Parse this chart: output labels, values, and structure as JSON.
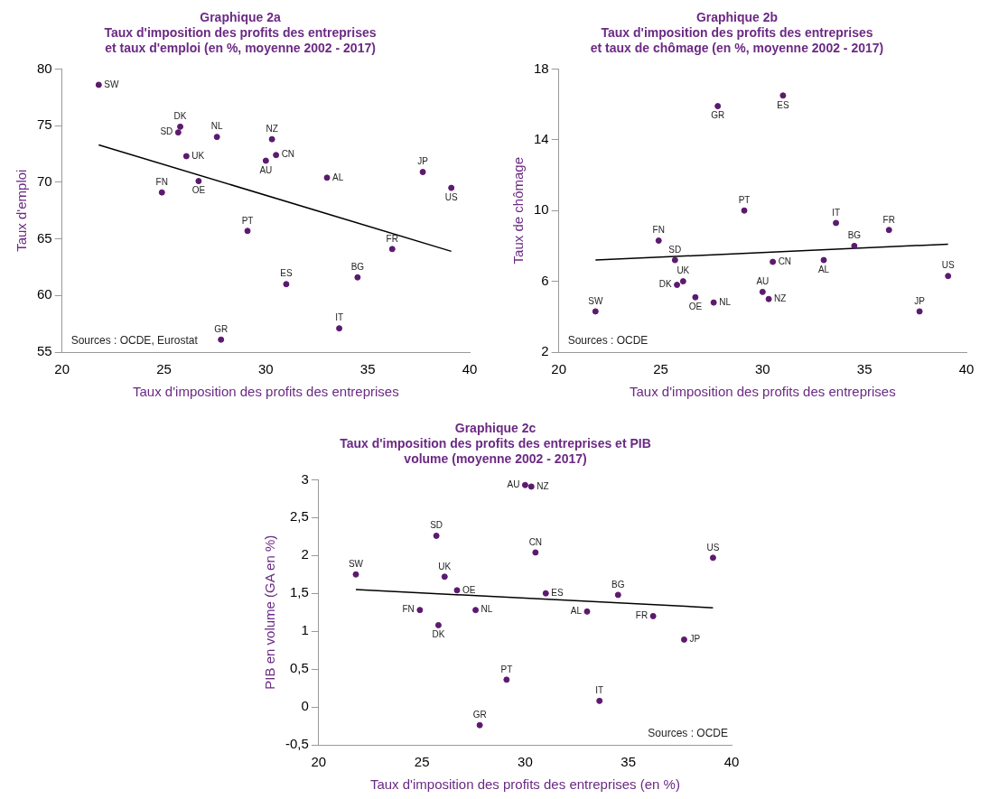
{
  "chart_data": [
    {
      "type": "scatter",
      "title": "Graphique 2a",
      "subtitle": "Taux d'imposition des profits des entreprises\net taux d'emploi (en %, moyenne 2002 - 2017)",
      "xlabel": "Taux d'imposition des profits des entreprises",
      "ylabel": "Taux d'emploi",
      "xlim": [
        20,
        40
      ],
      "xticks": [
        20,
        25,
        30,
        35,
        40
      ],
      "ylim": [
        55,
        80
      ],
      "yticks": [
        55,
        60,
        65,
        70,
        75,
        80
      ],
      "grid": false,
      "legend": false,
      "series": [
        {
          "marker": "circle",
          "color": "#5c1a6e",
          "x": [
            21.8,
            24.9,
            25.7,
            25.8,
            26.1,
            26.7,
            27.6,
            27.8,
            29.1,
            30.0,
            30.3,
            30.5,
            31.0,
            33.0,
            33.6,
            34.5,
            36.2,
            37.7,
            39.1
          ],
          "values": [
            78.6,
            69.1,
            74.4,
            74.9,
            72.3,
            70.1,
            74.0,
            56.1,
            65.7,
            71.9,
            73.8,
            72.4,
            61.0,
            70.4,
            57.1,
            61.6,
            64.1,
            70.9,
            69.5
          ]
        },
        {
          "type": "line",
          "marker": "none",
          "color": "#000000",
          "x": [
            21.8,
            39.1
          ],
          "values": [
            73.3,
            63.9
          ]
        }
      ],
      "annotations": [
        {
          "text": "SW",
          "x": 21.8,
          "y": 78.6
        },
        {
          "text": "FN",
          "x": 24.9,
          "y": 69.1
        },
        {
          "text": "SD",
          "x": 25.7,
          "y": 74.4
        },
        {
          "text": "DK",
          "x": 25.8,
          "y": 74.9
        },
        {
          "text": "UK",
          "x": 26.1,
          "y": 72.3
        },
        {
          "text": "OE",
          "x": 26.7,
          "y": 70.1
        },
        {
          "text": "NL",
          "x": 27.6,
          "y": 74.0
        },
        {
          "text": "GR",
          "x": 27.8,
          "y": 56.1
        },
        {
          "text": "PT",
          "x": 29.1,
          "y": 65.7
        },
        {
          "text": "AU",
          "x": 30.0,
          "y": 71.9
        },
        {
          "text": "NZ",
          "x": 30.3,
          "y": 73.8
        },
        {
          "text": "CN",
          "x": 30.5,
          "y": 72.4
        },
        {
          "text": "ES",
          "x": 31.0,
          "y": 61.0
        },
        {
          "text": "AL",
          "x": 33.0,
          "y": 70.4
        },
        {
          "text": "IT",
          "x": 33.6,
          "y": 57.1
        },
        {
          "text": "BG",
          "x": 34.5,
          "y": 61.6
        },
        {
          "text": "FR",
          "x": 36.2,
          "y": 64.1
        },
        {
          "text": "JP",
          "x": 37.7,
          "y": 70.9
        },
        {
          "text": "US",
          "x": 39.1,
          "y": 69.5
        },
        "Sources : OCDE, Eurostat"
      ]
    },
    {
      "type": "scatter",
      "title": "Graphique 2b",
      "subtitle": "Taux d'imposition des profits des entreprises\net taux de chômage (en %, moyenne 2002 - 2017)",
      "xlabel": "Taux d'imposition des profits des entreprises",
      "ylabel": "Taux de chômage",
      "xlim": [
        20,
        40
      ],
      "xticks": [
        20,
        25,
        30,
        35,
        40
      ],
      "ylim": [
        2,
        18
      ],
      "yticks": [
        2,
        6,
        10,
        14,
        18
      ],
      "grid": false,
      "legend": false,
      "series": [
        {
          "marker": "circle",
          "color": "#5c1a6e",
          "x": [
            21.8,
            24.9,
            25.7,
            25.8,
            26.1,
            26.7,
            27.6,
            27.8,
            29.1,
            30.0,
            30.3,
            30.5,
            31.0,
            33.0,
            33.6,
            34.5,
            36.2,
            37.7,
            39.1
          ],
          "values": [
            4.3,
            8.3,
            7.2,
            5.8,
            6.0,
            5.1,
            4.8,
            15.9,
            10.0,
            5.4,
            5.0,
            7.1,
            16.5,
            7.2,
            9.3,
            8.0,
            8.9,
            4.3,
            6.3
          ]
        },
        {
          "type": "line",
          "marker": "none",
          "color": "#000000",
          "x": [
            21.8,
            39.1
          ],
          "values": [
            7.2,
            8.1
          ]
        }
      ],
      "annotations": [
        {
          "text": "SW",
          "x": 21.8,
          "y": 4.3
        },
        {
          "text": "FN",
          "x": 24.9,
          "y": 8.3
        },
        {
          "text": "SD",
          "x": 25.7,
          "y": 7.2
        },
        {
          "text": "DK",
          "x": 25.8,
          "y": 5.8
        },
        {
          "text": "UK",
          "x": 26.1,
          "y": 6.0
        },
        {
          "text": "OE",
          "x": 26.7,
          "y": 5.1
        },
        {
          "text": "NL",
          "x": 27.6,
          "y": 4.8
        },
        {
          "text": "GR",
          "x": 27.8,
          "y": 15.9
        },
        {
          "text": "PT",
          "x": 29.1,
          "y": 10.0
        },
        {
          "text": "AU",
          "x": 30.0,
          "y": 5.4
        },
        {
          "text": "NZ",
          "x": 30.3,
          "y": 5.0
        },
        {
          "text": "CN",
          "x": 30.5,
          "y": 7.1
        },
        {
          "text": "ES",
          "x": 31.0,
          "y": 16.5
        },
        {
          "text": "AL",
          "x": 33.0,
          "y": 7.2
        },
        {
          "text": "IT",
          "x": 33.6,
          "y": 9.3
        },
        {
          "text": "BG",
          "x": 34.5,
          "y": 8.0
        },
        {
          "text": "FR",
          "x": 36.2,
          "y": 8.9
        },
        {
          "text": "JP",
          "x": 37.7,
          "y": 4.3
        },
        {
          "text": "US",
          "x": 39.1,
          "y": 6.3
        },
        "Sources : OCDE"
      ]
    },
    {
      "type": "scatter",
      "title": "Graphique 2c",
      "subtitle": "Taux d'imposition des profits des entreprises et PIB\nvolume (moyenne 2002 - 2017)",
      "xlabel": "Taux d'imposition des profits des entreprises (en %)",
      "ylabel": "PIB en volume (GA en %)",
      "xlim": [
        20,
        40
      ],
      "xticks": [
        20,
        25,
        30,
        35,
        40
      ],
      "ylim": [
        -0.5,
        3
      ],
      "yticks": [
        {
          "value": -0.5,
          "label": "-0,5"
        },
        0,
        {
          "value": 0.5,
          "label": "0,5"
        },
        1,
        {
          "value": 1.5,
          "label": "1,5"
        },
        2,
        {
          "value": 2.5,
          "label": "2,5"
        },
        3
      ],
      "grid": false,
      "legend": false,
      "series": [
        {
          "marker": "circle",
          "color": "#5c1a6e",
          "x": [
            21.8,
            24.9,
            25.7,
            25.8,
            26.1,
            26.7,
            27.6,
            27.8,
            29.1,
            30.0,
            30.3,
            30.5,
            31.0,
            33.0,
            33.6,
            34.5,
            36.2,
            37.7,
            39.1
          ],
          "values": [
            1.75,
            1.28,
            2.26,
            1.08,
            1.72,
            1.54,
            1.28,
            -0.24,
            0.36,
            2.93,
            2.91,
            2.04,
            1.5,
            1.26,
            0.08,
            1.48,
            1.2,
            0.89,
            1.97
          ]
        },
        {
          "type": "line",
          "marker": "none",
          "color": "#000000",
          "x": [
            21.8,
            39.1
          ],
          "values": [
            1.55,
            1.31
          ]
        }
      ],
      "annotations": [
        {
          "text": "SW",
          "x": 21.8,
          "y": 1.75
        },
        {
          "text": "FN",
          "x": 24.9,
          "y": 1.28
        },
        {
          "text": "SD",
          "x": 25.7,
          "y": 2.26
        },
        {
          "text": "DK",
          "x": 25.8,
          "y": 1.08
        },
        {
          "text": "UK",
          "x": 26.1,
          "y": 1.72
        },
        {
          "text": "OE",
          "x": 26.7,
          "y": 1.54
        },
        {
          "text": "NL",
          "x": 27.6,
          "y": 1.28
        },
        {
          "text": "GR",
          "x": 27.8,
          "y": -0.24
        },
        {
          "text": "PT",
          "x": 29.1,
          "y": 0.36
        },
        {
          "text": "AU",
          "x": 30.0,
          "y": 2.93
        },
        {
          "text": "NZ",
          "x": 30.3,
          "y": 2.91
        },
        {
          "text": "CN",
          "x": 30.5,
          "y": 2.04
        },
        {
          "text": "ES",
          "x": 31.0,
          "y": 1.5
        },
        {
          "text": "AL",
          "x": 33.0,
          "y": 1.26
        },
        {
          "text": "IT",
          "x": 33.6,
          "y": 0.08
        },
        {
          "text": "BG",
          "x": 34.5,
          "y": 1.48
        },
        {
          "text": "FR",
          "x": 36.2,
          "y": 1.2
        },
        {
          "text": "JP",
          "x": 37.7,
          "y": 0.89
        },
        {
          "text": "US",
          "x": 39.1,
          "y": 1.97
        },
        "Sources : OCDE"
      ]
    }
  ]
}
